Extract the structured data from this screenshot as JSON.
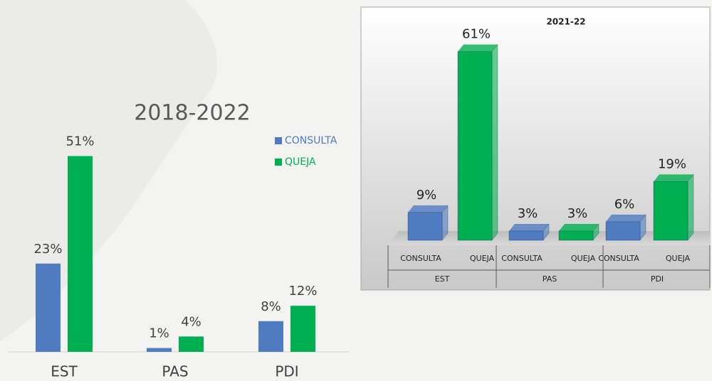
{
  "chart_data": [
    {
      "type": "bar",
      "title": "2018-2022",
      "categories": [
        "EST",
        "PAS",
        "PDI"
      ],
      "series": [
        {
          "name": "CONSULTA",
          "color": "#4f7cc0",
          "values": [
            23,
            1,
            8
          ],
          "value_labels": [
            "23%",
            "1%",
            "8%"
          ]
        },
        {
          "name": "QUEJA",
          "color": "#00b050",
          "values": [
            51,
            4,
            12
          ],
          "value_labels": [
            "51%",
            "4%",
            "12%"
          ]
        }
      ]
    },
    {
      "type": "bar3d",
      "title": "2021-22",
      "groups": [
        "EST",
        "PAS",
        "PDI"
      ],
      "categories": [
        "CONSULTA",
        "QUEJA",
        "CONSULTA",
        "QUEJA",
        "CONSULTA",
        "QUEJA"
      ],
      "values": [
        9,
        61,
        3,
        3,
        6,
        19
      ],
      "value_labels": [
        "9%",
        "61%",
        "3%",
        "3%",
        "6%",
        "19%"
      ],
      "colors": [
        "#4f7cc0",
        "#00b050",
        "#4f7cc0",
        "#00b050",
        "#4f7cc0",
        "#00b050"
      ]
    }
  ]
}
